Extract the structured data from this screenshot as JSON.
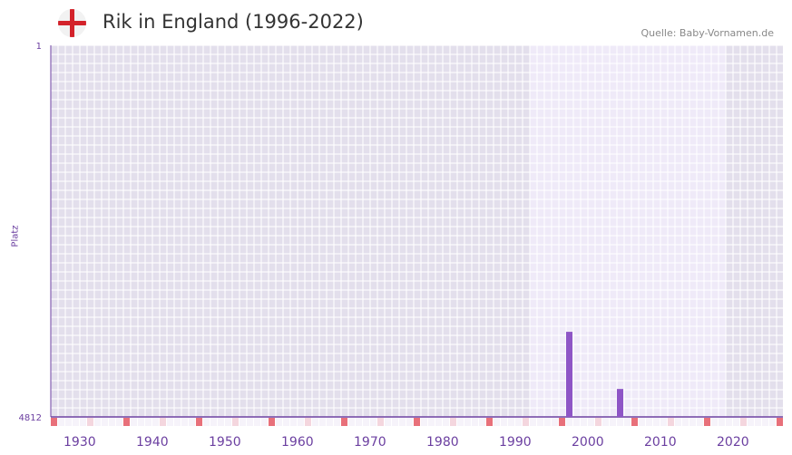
{
  "header": {
    "title": "Rik in England (1996-2022)",
    "source": "Quelle: Baby-Vornamen.de",
    "flag_icon": "england-flag-icon"
  },
  "chart_data": {
    "type": "bar",
    "title": "Rik in England (1996-2022)",
    "ylabel": "Platz",
    "xlabel": "",
    "xlim": [
      1928,
      2029
    ],
    "ylim": [
      4812,
      1
    ],
    "y_ticks": [
      "1",
      "4812"
    ],
    "x_ticks": [
      "1930",
      "1940",
      "1950",
      "1960",
      "1970",
      "1980",
      "1990",
      "2000",
      "2010",
      "2020"
    ],
    "data_range": [
      1994,
      2021
    ],
    "x": [
      1999,
      2006
    ],
    "values": [
      3710,
      4450
    ],
    "colors": {
      "bar": "#8e55c6",
      "axis": "#6b3fa0",
      "marker": "#e8707a",
      "marker_light": "#f4d6de"
    }
  }
}
